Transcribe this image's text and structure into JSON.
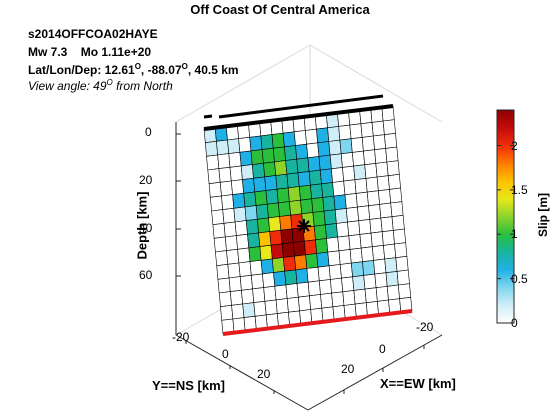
{
  "header": {
    "title": "Off Coast Of Central America",
    "event_id": "s2014OFFCOA02HAYE",
    "mw_label": "Mw 7.3",
    "mo_label": "Mo 1.11e+20",
    "latlondep_prefix": "Lat/Lon/Dep: 12.61",
    "lon_part": ", -88.07",
    "dep_part": ", 40.5 km",
    "degree_mark": "O",
    "view_prefix": "View angle:  49",
    "view_suffix": " from North"
  },
  "axes": {
    "depth_label": "Depth [km]",
    "ns_label": "Y==NS [km]",
    "ew_label": "X==EW [km]",
    "depth_ticks": [
      "0",
      "20",
      "40",
      "60"
    ],
    "ns_ticks": [
      "-20",
      "0",
      "20"
    ],
    "ew_ticks": [
      "-20",
      "0",
      "20"
    ]
  },
  "colorbar": {
    "label": "Slip [m]",
    "ticks": [
      "0",
      "0.5",
      "1",
      "1.5",
      "2"
    ],
    "range": [
      0,
      2.4
    ],
    "colors": [
      "#ffffff",
      "#cfeef8",
      "#7fd6ef",
      "#1fb1e6",
      "#18b4a0",
      "#2bbf3c",
      "#8fd42b",
      "#e8e81a",
      "#ffc000",
      "#ff7a00",
      "#f02d0a",
      "#c40c0a",
      "#8c0000"
    ]
  },
  "chart_data": {
    "type": "heatmap",
    "title": "Off Coast Of Central America",
    "xlabel": "X==EW [km]",
    "ylabel": "Y==NS [km]",
    "zlabel": "Depth [km]",
    "colorbar_label": "Slip [m]",
    "clim": [
      0,
      2.4
    ],
    "grid_cols": 17,
    "grid_rows": 15,
    "slip": [
      [
        0.15,
        0.5,
        0,
        0,
        0,
        0,
        0,
        0,
        0,
        0,
        0,
        0.15,
        0,
        0,
        0,
        0,
        0
      ],
      [
        0.15,
        0.2,
        0.2,
        0,
        0.6,
        0.8,
        0.9,
        0.6,
        0,
        0,
        0.5,
        0.2,
        0,
        0,
        0,
        0,
        0
      ],
      [
        0,
        0,
        0,
        0.5,
        0.9,
        1.0,
        0.9,
        0.8,
        0.6,
        0,
        0.5,
        0.15,
        0.4,
        0,
        0,
        0,
        0
      ],
      [
        0,
        0,
        0,
        0.2,
        0.8,
        0.9,
        1.1,
        0.8,
        0.8,
        0.5,
        0.5,
        0.2,
        0,
        0,
        0,
        0,
        0
      ],
      [
        0,
        0,
        0,
        0.5,
        0.6,
        0.5,
        0.7,
        0.8,
        0.6,
        0.7,
        0.5,
        0,
        0,
        0.2,
        0,
        0,
        0
      ],
      [
        0,
        0,
        0.5,
        0.7,
        0.9,
        0.8,
        1.0,
        1.1,
        0.9,
        0.8,
        0.7,
        0,
        0,
        0,
        0,
        0,
        0
      ],
      [
        0,
        0,
        0.2,
        0.4,
        0.8,
        0.9,
        1.0,
        1.1,
        1.0,
        0.9,
        0.7,
        0.5,
        0,
        0,
        0,
        0,
        0
      ],
      [
        0,
        0,
        0,
        0.8,
        0.9,
        1.3,
        1.7,
        1.9,
        1.1,
        0.9,
        0.7,
        0.15,
        0,
        0,
        0,
        0,
        0
      ],
      [
        0,
        0,
        0,
        0.8,
        1.5,
        2.0,
        2.4,
        2.3,
        1.8,
        1.0,
        0.8,
        0,
        0,
        0,
        0,
        0,
        0
      ],
      [
        0,
        0,
        0,
        0.9,
        1.4,
        2.2,
        2.4,
        2.4,
        2.0,
        0.9,
        0,
        0,
        0,
        0,
        0,
        0,
        0
      ],
      [
        0,
        0,
        0,
        0,
        0.5,
        1.1,
        1.9,
        1.7,
        1.0,
        0.5,
        0,
        0,
        0,
        0,
        0,
        0,
        0
      ],
      [
        0,
        0,
        0,
        0,
        0,
        0.5,
        0.8,
        0.6,
        0,
        0,
        0,
        0,
        0.3,
        0.3,
        0,
        0.15,
        0
      ],
      [
        0,
        0,
        0,
        0,
        0,
        0,
        0,
        0,
        0,
        0,
        0,
        0,
        0.15,
        0,
        0,
        0.15,
        0
      ],
      [
        0,
        0,
        0.15,
        0,
        0,
        0,
        0,
        0,
        0,
        0,
        0,
        0,
        0,
        0,
        0,
        0,
        0
      ],
      [
        0,
        0,
        0,
        0,
        0,
        0,
        0,
        0,
        0,
        0,
        0,
        0,
        0,
        0,
        0,
        0,
        0
      ]
    ]
  }
}
